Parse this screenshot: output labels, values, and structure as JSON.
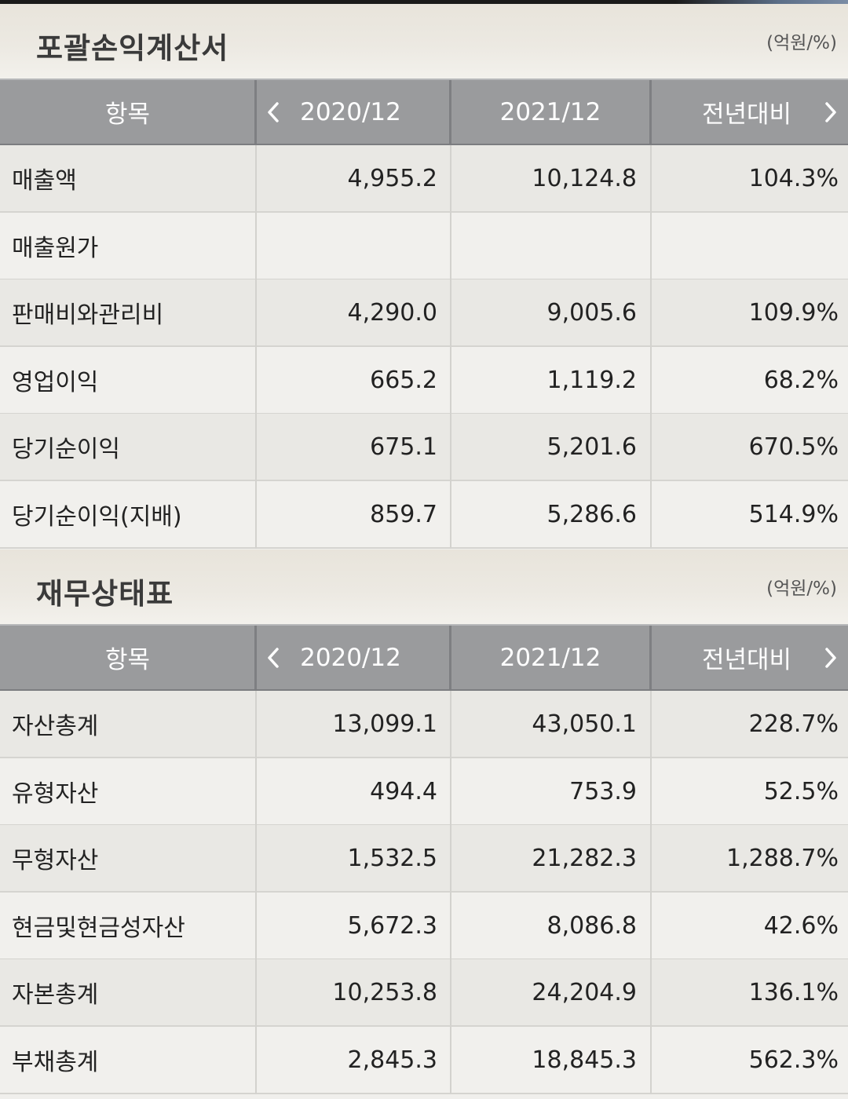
{
  "sections": [
    {
      "title": "포괄손익계산서",
      "unit": "(억원/%)",
      "headers": {
        "item": "항목",
        "col1": "2020/12",
        "col2": "2021/12",
        "col3": "전년대비"
      },
      "rows": [
        {
          "label": "매출액",
          "v1": "4,955.2",
          "v2": "10,124.8",
          "v3": "104.3%"
        },
        {
          "label": "매출원가",
          "v1": "",
          "v2": "",
          "v3": ""
        },
        {
          "label": "판매비와관리비",
          "v1": "4,290.0",
          "v2": "9,005.6",
          "v3": "109.9%"
        },
        {
          "label": "영업이익",
          "v1": "665.2",
          "v2": "1,119.2",
          "v3": "68.2%"
        },
        {
          "label": "당기순이익",
          "v1": "675.1",
          "v2": "5,201.6",
          "v3": "670.5%"
        },
        {
          "label": "당기순이익(지배)",
          "v1": "859.7",
          "v2": "5,286.6",
          "v3": "514.9%"
        }
      ]
    },
    {
      "title": "재무상태표",
      "unit": "(억원/%)",
      "headers": {
        "item": "항목",
        "col1": "2020/12",
        "col2": "2021/12",
        "col3": "전년대비"
      },
      "rows": [
        {
          "label": "자산총계",
          "v1": "13,099.1",
          "v2": "43,050.1",
          "v3": "228.7%"
        },
        {
          "label": "유형자산",
          "v1": "494.4",
          "v2": "753.9",
          "v3": "52.5%"
        },
        {
          "label": "무형자산",
          "v1": "1,532.5",
          "v2": "21,282.3",
          "v3": "1,288.7%"
        },
        {
          "label": "현금및현금성자산",
          "v1": "5,672.3",
          "v2": "8,086.8",
          "v3": "42.6%"
        },
        {
          "label": "자본총계",
          "v1": "10,253.8",
          "v2": "24,204.9",
          "v3": "136.1%"
        },
        {
          "label": "부채총계",
          "v1": "2,845.3",
          "v2": "18,845.3",
          "v3": "562.3%"
        }
      ]
    }
  ],
  "icons": {
    "prev": "chevron-left-icon",
    "next": "chevron-right-icon"
  }
}
